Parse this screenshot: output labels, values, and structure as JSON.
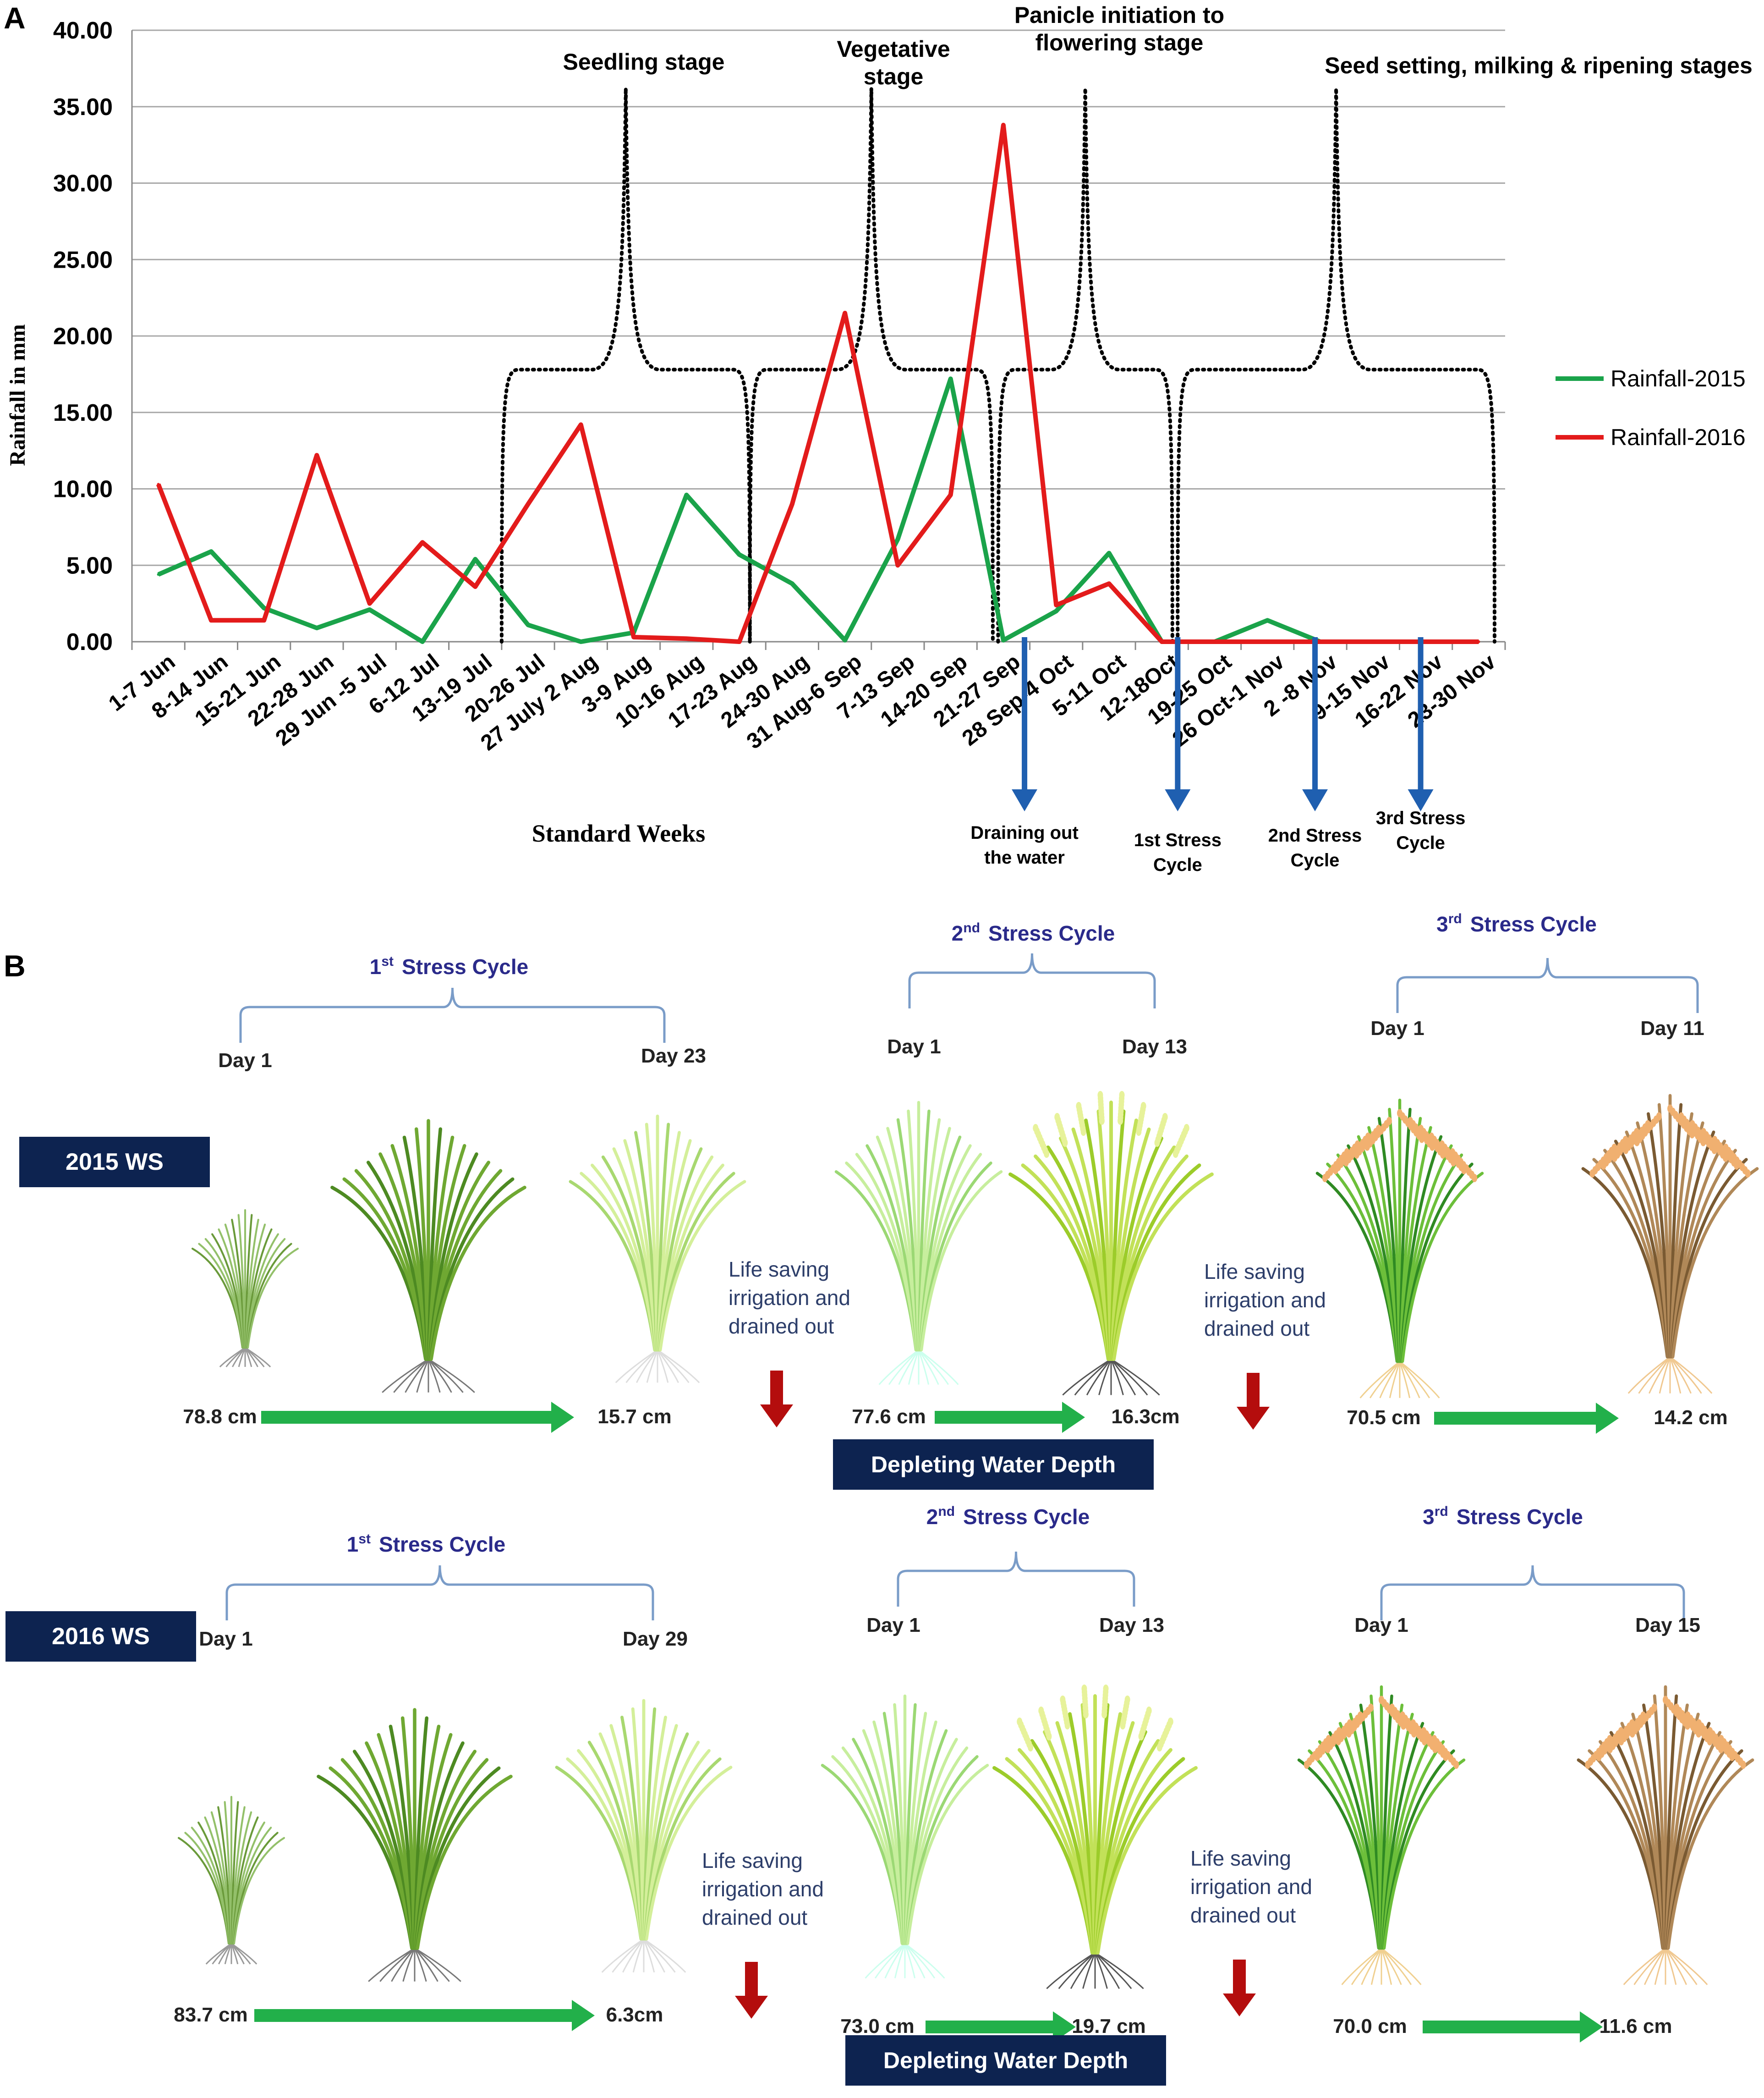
{
  "panel_labels": {
    "a": "A",
    "b": "B"
  },
  "colors": {
    "rain_2015": "#1aa34a",
    "rain_2016": "#e31b1b",
    "blue_arrow": "#1f5fb0",
    "navy": "#0d2350",
    "bracket": "#7a9cc8",
    "bracket_text": "#2a2a8a",
    "green_arrow": "#22b04a",
    "red_arrow": "#b40d0d",
    "grid": "#a8a8a8"
  },
  "chart_data": {
    "type": "line",
    "title": "",
    "xlabel": "Standard Weeks",
    "ylabel": "Rainfall in mm",
    "ylim": [
      0,
      40
    ],
    "yticks": [
      "0.00",
      "5.00",
      "10.00",
      "15.00",
      "20.00",
      "25.00",
      "30.00",
      "35.00",
      "40.00"
    ],
    "categories": [
      "1-7 Jun",
      "8-14 Jun",
      "15-21 Jun",
      "22-28 Jun",
      "29 Jun -5 Jul",
      "6-12 Jul",
      "13-19 Jul",
      "20-26 Jul",
      "27 July 2 Aug",
      "3-9 Aug",
      "10-16 Aug",
      "17-23 Aug",
      "24-30 Aug",
      "31 Aug-6 Sep",
      "7-13 Sep",
      "14-20 Sep",
      "21-27 Sep",
      "28 Sep-4 Oct",
      "5-11 Oct",
      "12-18Oct",
      "19-25 Oct",
      "26 Oct-1 Nov",
      "2 -8 Nov",
      "9-15 Nov",
      "16-22 Nov",
      "23-30 Nov"
    ],
    "series": [
      {
        "name": "Rainfall-2015",
        "values": [
          4.4,
          5.9,
          2.2,
          0.9,
          2.1,
          0.0,
          5.4,
          1.1,
          0.0,
          0.6,
          9.6,
          5.7,
          3.8,
          0.1,
          6.7,
          17.2,
          0.1,
          2.0,
          5.8,
          0.0,
          0.0,
          1.4,
          0.0,
          0.0,
          0.0,
          0.0
        ]
      },
      {
        "name": "Rainfall-2016",
        "values": [
          10.3,
          1.4,
          1.4,
          12.2,
          2.5,
          6.5,
          3.6,
          9.0,
          14.2,
          0.3,
          0.2,
          0.0,
          9.0,
          21.5,
          5.0,
          9.6,
          33.8,
          2.4,
          3.8,
          0.0,
          0.0,
          0.0,
          0.0,
          0.0,
          0.0,
          0.0
        ]
      }
    ],
    "stages": [
      {
        "label": "Seedling stage",
        "from": 7.0,
        "to": 11.7
      },
      {
        "label": "Vegetative stage",
        "from": 11.7,
        "to": 16.3
      },
      {
        "label": "Panicle initiation to flowering stage",
        "from": 16.4,
        "to": 19.7
      },
      {
        "label": "Seed setting, milking & ripening stages",
        "from": 19.8,
        "to": 25.8
      }
    ],
    "events": [
      {
        "label_1": "Draining out",
        "label_2": "the water",
        "week": 16.9
      },
      {
        "label_1": "1st Stress",
        "label_2": "Cycle",
        "week": 19.8
      },
      {
        "label_1": "2nd Stress",
        "label_2": "Cycle",
        "week": 22.4
      },
      {
        "label_1": "3rd Stress",
        "label_2": "Cycle",
        "week": 24.4
      }
    ]
  },
  "panel_b": {
    "rows": [
      {
        "season": "2015 WS",
        "cycles": [
          {
            "title": "Stress Cycle",
            "ord_num": "1",
            "ord_sup": "st",
            "day_start": "Day 1",
            "day_end": "Day 23",
            "depth_start": "78.8 cm",
            "depth_end": "15.7 cm"
          },
          {
            "title": "Stress Cycle",
            "ord_num": "2",
            "ord_sup": "nd",
            "day_start": "Day 1",
            "day_end": "Day 13",
            "depth_start": "77.6 cm",
            "depth_end": "16.3cm"
          },
          {
            "title": "Stress Cycle",
            "ord_num": "3",
            "ord_sup": "rd",
            "day_start": "Day 1",
            "day_end": "Day 11",
            "depth_start": "70.5 cm",
            "depth_end": "14.2 cm"
          }
        ],
        "irrigation_note": [
          "Life saving",
          "irrigation and",
          "drained out"
        ],
        "depleting_label": "Depleting Water Depth"
      },
      {
        "season": "2016 WS",
        "cycles": [
          {
            "title": "Stress Cycle",
            "ord_num": "1",
            "ord_sup": "st",
            "day_start": "Day 1",
            "day_end": "Day 29",
            "depth_start": "83.7 cm",
            "depth_end": "6.3cm"
          },
          {
            "title": "Stress Cycle",
            "ord_num": "2",
            "ord_sup": "nd",
            "day_start": "Day 1",
            "day_end": "Day 13",
            "depth_start": "73.0 cm",
            "depth_end": "19.7 cm"
          },
          {
            "title": "Stress Cycle",
            "ord_num": "3",
            "ord_sup": "rd",
            "day_start": "Day 1",
            "day_end": "Day 15",
            "depth_start": "70.0 cm",
            "depth_end": "11.6 cm"
          }
        ],
        "irrigation_note": [
          "Life saving",
          "irrigation and",
          "drained out"
        ],
        "depleting_label": "Depleting Water Depth"
      }
    ]
  }
}
